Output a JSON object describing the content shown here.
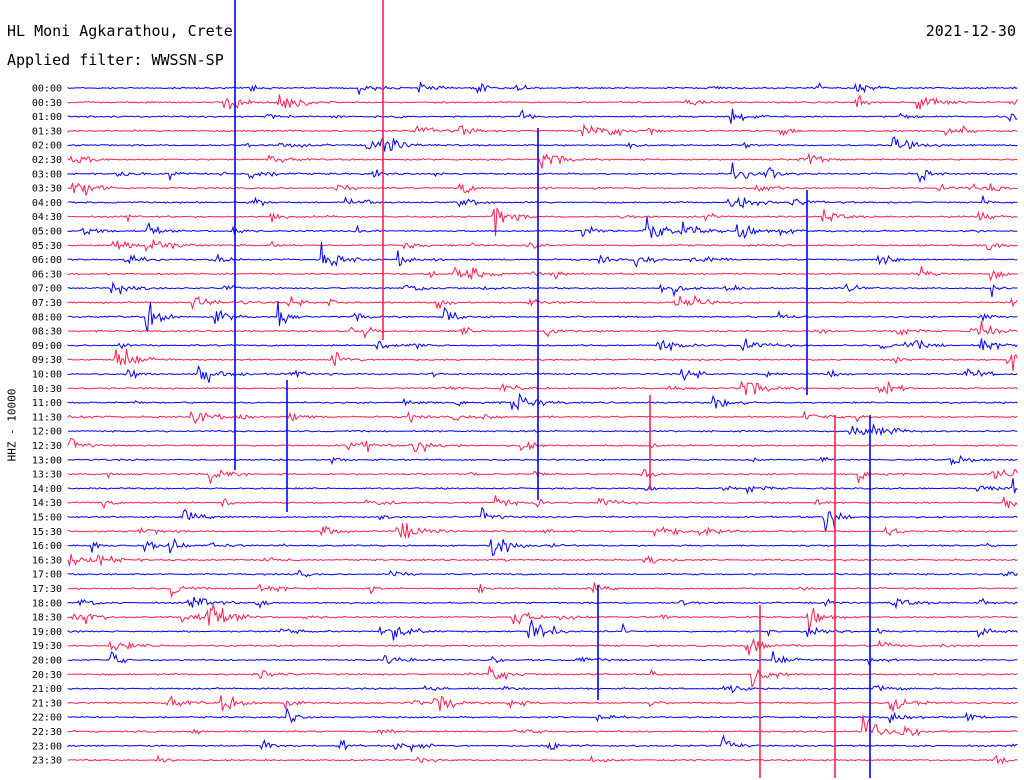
{
  "header": {
    "station": "HL Moni Agkarathou, Crete",
    "filter": "Applied filter: WWSSN-SP",
    "date": "2021-12-30"
  },
  "chart_data": {
    "type": "line",
    "title": "HL Moni Agkarathou, Crete",
    "subtitle": "Applied filter: WWSSN-SP",
    "date": "2021-12-30",
    "ylabel": "HHZ - 10000",
    "row_labels": [
      "00:00",
      "00:30",
      "01:00",
      "01:30",
      "02:00",
      "02:30",
      "03:00",
      "03:30",
      "04:00",
      "04:30",
      "05:00",
      "05:30",
      "06:00",
      "06:30",
      "07:00",
      "07:30",
      "08:00",
      "08:30",
      "09:00",
      "09:30",
      "10:00",
      "10:30",
      "11:00",
      "11:30",
      "12:00",
      "12:30",
      "13:00",
      "13:30",
      "14:00",
      "14:30",
      "15:00",
      "15:30",
      "16:00",
      "16:30",
      "17:00",
      "17:30",
      "18:00",
      "18:30",
      "19:00",
      "19:30",
      "20:00",
      "20:30",
      "21:00",
      "21:30",
      "22:00",
      "22:30",
      "23:00",
      "23:30"
    ],
    "trace_colors": [
      "#0000ff",
      "#ff1f4f"
    ],
    "grid": false
  }
}
